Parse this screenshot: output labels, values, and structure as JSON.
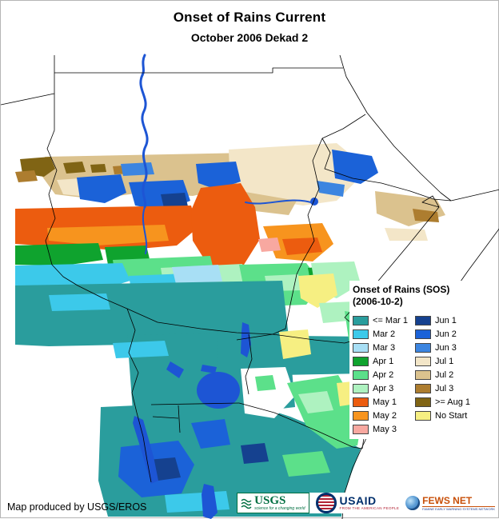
{
  "header": {
    "title": "Onset of Rains Current",
    "subtitle": "October 2006 Dekad 2"
  },
  "legend": {
    "title": "Onset of Rains (SOS)",
    "subtitle": "(2006-10-2)",
    "column1": [
      {
        "label": "<= Mar 1",
        "color": "#2a9d9d"
      },
      {
        "label": "Mar 2",
        "color": "#3cc9ea"
      },
      {
        "label": "Mar 3",
        "color": "#a8dff5"
      },
      {
        "label": "Apr 1",
        "color": "#0fa32e"
      },
      {
        "label": "Apr 2",
        "color": "#5ce08a"
      },
      {
        "label": "Apr 3",
        "color": "#aef2c0"
      },
      {
        "label": "May 1",
        "color": "#ec5c0f"
      },
      {
        "label": "May 2",
        "color": "#f7941e"
      },
      {
        "label": "May 3",
        "color": "#f8a8a0"
      }
    ],
    "column2": [
      {
        "label": "Jun 1",
        "color": "#15418f"
      },
      {
        "label": "Jun 2",
        "color": "#1b62d8"
      },
      {
        "label": "Jun 3",
        "color": "#3c85e0"
      },
      {
        "label": "Jul 1",
        "color": "#f3e6c8"
      },
      {
        "label": "Jul 2",
        "color": "#dbc28e"
      },
      {
        "label": "Jul 3",
        "color": "#ad7d2f"
      },
      {
        "label": ">= Aug 1",
        "color": "#806414"
      },
      {
        "label": "No Start",
        "color": "#f6ef82"
      }
    ]
  },
  "footer": {
    "credit": "Map produced by USGS/EROS"
  },
  "logos": {
    "usgs": {
      "name": "USGS",
      "tagline": "science for a changing world"
    },
    "usaid": {
      "name": "USAID",
      "tagline": "FROM THE AMERICAN PEOPLE"
    },
    "fewsnet": {
      "name": "FEWS NET",
      "tagline": "FAMINE EARLY WARNING SYSTEMS NETWORK"
    }
  },
  "map_colors": {
    "water": "#1d55d4",
    "border": "#000000",
    "no_data": "#ffffff"
  }
}
